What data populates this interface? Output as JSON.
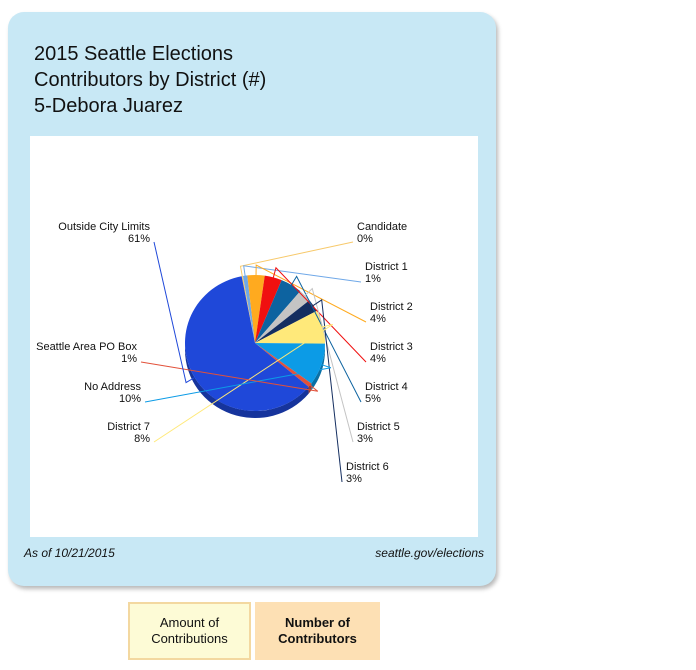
{
  "title": {
    "line1": "2015 Seattle Elections",
    "line2": "Contributors by District (#)",
    "line3": "5-Debora Juarez"
  },
  "footer": {
    "as_of": "As of 10/21/2015",
    "source": "seattle.gov/elections"
  },
  "tabs": {
    "amount_label": "Amount of\nContributions",
    "number_label": "Number of\nContributors",
    "active": "number"
  },
  "chart_data": {
    "type": "pie",
    "start_angle_deg": 101,
    "slices": [
      {
        "name": "Candidate",
        "label": "Candidate",
        "pct_label": "0%",
        "value": 0.3,
        "color": "#f7c96b"
      },
      {
        "name": "District 1",
        "label": "District 1",
        "pct_label": "1%",
        "value": 1,
        "color": "#6fa8e8"
      },
      {
        "name": "District 2",
        "label": "District 2",
        "pct_label": "4%",
        "value": 4,
        "color": "#ffaa1f"
      },
      {
        "name": "District 3",
        "label": "District 3",
        "pct_label": "4%",
        "value": 4,
        "color": "#f01010"
      },
      {
        "name": "District 4",
        "label": "District 4",
        "pct_label": "5%",
        "value": 5,
        "color": "#0d63a0"
      },
      {
        "name": "District 5",
        "label": "District 5",
        "pct_label": "3%",
        "value": 3,
        "color": "#c4c4c4"
      },
      {
        "name": "District 6",
        "label": "District 6",
        "pct_label": "3%",
        "value": 3,
        "color": "#142e60"
      },
      {
        "name": "District 7",
        "label": "District 7",
        "pct_label": "8%",
        "value": 8,
        "color": "#ffe97a"
      },
      {
        "name": "No Address",
        "label": "No Address",
        "pct_label": "10%",
        "value": 10,
        "color": "#0c9be6"
      },
      {
        "name": "Seattle Area PO Box",
        "label": "Seattle Area PO Box",
        "pct_label": "1%",
        "value": 1,
        "color": "#e2513a"
      },
      {
        "name": "Outside City Limits",
        "label": "Outside City Limits",
        "pct_label": "61%",
        "value": 61,
        "color": "#1f48d9"
      }
    ],
    "legend": "none"
  }
}
